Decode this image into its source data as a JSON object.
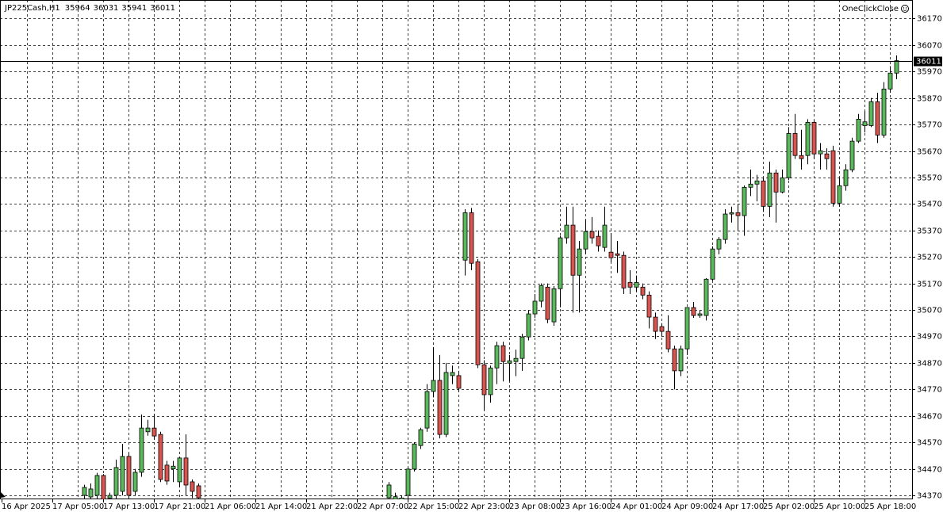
{
  "chart_data": {
    "type": "candlestick",
    "title": "JP225Cash,H1",
    "annotation": "OneClickClose",
    "categories": [
      "16 Apr 2025",
      null,
      null,
      null,
      null,
      null,
      null,
      null,
      "17 Apr 05:00",
      null,
      null,
      null,
      null,
      null,
      null,
      null,
      "17 Apr 13:00",
      null,
      null,
      null,
      null,
      null,
      null,
      null,
      "17 Apr 21:00",
      null,
      null,
      null,
      null,
      null,
      null,
      null,
      "21 Apr 06:00",
      null,
      null,
      null,
      null,
      null,
      null,
      null,
      "21 Apr 14:00",
      null,
      null,
      null,
      null,
      null,
      null,
      null,
      "21 Apr 22:00",
      null,
      null,
      null,
      null,
      null,
      null,
      null,
      "22 Apr 07:00",
      null,
      null,
      null,
      null,
      null,
      null,
      null,
      "22 Apr 15:00",
      null,
      null,
      null,
      null,
      null,
      null,
      null,
      "22 Apr 23:00",
      null,
      null,
      null,
      null,
      null,
      null,
      null,
      "23 Apr 08:00",
      null,
      null,
      null,
      null,
      null,
      null,
      null,
      "23 Apr 16:00",
      null,
      null,
      null,
      null,
      null,
      null,
      null,
      "24 Apr 01:00",
      null,
      null,
      null,
      null,
      null,
      null,
      null,
      "24 Apr 09:00",
      null,
      null,
      null,
      null,
      null,
      null,
      null,
      "24 Apr 17:00",
      null,
      null,
      null,
      null,
      null,
      null,
      null,
      "25 Apr 02:00",
      null,
      null,
      null,
      null,
      null,
      null,
      null,
      "25 Apr 10:00",
      null,
      null,
      null,
      null,
      null,
      null,
      null,
      "25 Apr 18:00",
      null,
      null,
      null,
      null,
      null
    ],
    "open": [
      null,
      null,
      null,
      null,
      null,
      null,
      null,
      null,
      null,
      null,
      null,
      null,
      null,
      34370,
      34364,
      34370,
      34445,
      34360,
      34370,
      34385,
      34517,
      34385,
      34457,
      34610,
      34624,
      34600,
      34484,
      34470,
      34421,
      34511,
      34421,
      34406,
      null,
      null,
      null,
      null,
      null,
      null,
      null,
      null,
      null,
      null,
      null,
      null,
      null,
      null,
      null,
      null,
      null,
      null,
      null,
      null,
      null,
      null,
      null,
      null,
      null,
      null,
      null,
      null,
      null,
      34361,
      34355,
      34340,
      34370,
      34469,
      34558,
      34624,
      34762,
      34804,
      34600,
      34822,
      34822,
      35258,
      35437,
      35252,
      34863,
      34750,
      34851,
      34935,
      34869,
      34875,
      34887,
      34968,
      35055,
      35103,
      35156,
      35025,
      35150,
      35342,
      35390,
      35201,
      35300,
      35366,
      35348,
      35306,
      35288,
      35282,
      35276,
      35174,
      35156,
      35156,
      35126,
      35043,
      35007,
      34989,
      34923,
      34840,
      34923,
      35079,
      35049,
      35049,
      35186,
      35300,
      35336,
      35432,
      35437,
      35426,
      35533,
      35545,
      35557,
      35461,
      35587,
      35515,
      35569,
      35736,
      35653,
      35653,
      35778,
      35659,
      35659,
      35671,
      35473,
      35539,
      35599,
      35707,
      35766,
      35766,
      35856,
      35730,
      35904,
      35964
    ],
    "high": [
      null,
      null,
      null,
      null,
      null,
      null,
      null,
      null,
      null,
      null,
      null,
      null,
      null,
      34410,
      34415,
      34455,
      34450,
      34380,
      34505,
      34564,
      34530,
      34470,
      34675,
      34655,
      34678,
      34610,
      34500,
      34500,
      34515,
      34600,
      34430,
      34415,
      null,
      null,
      null,
      null,
      null,
      null,
      null,
      null,
      null,
      null,
      null,
      null,
      null,
      null,
      null,
      null,
      null,
      null,
      null,
      null,
      null,
      null,
      null,
      null,
      null,
      null,
      null,
      null,
      null,
      34420,
      34380,
      34370,
      34475,
      34570,
      34625,
      34790,
      34930,
      34900,
      34870,
      34860,
      34840,
      35450,
      35455,
      35262,
      34880,
      34860,
      34950,
      34950,
      34900,
      34920,
      34980,
      35070,
      35130,
      35170,
      35170,
      35160,
      35350,
      35460,
      35460,
      35330,
      35410,
      35420,
      35370,
      35460,
      35360,
      35330,
      35290,
      35220,
      35200,
      35170,
      35140,
      35060,
      35020,
      35050,
      34935,
      34935,
      35080,
      35100,
      35070,
      35190,
      35310,
      35345,
      35450,
      35460,
      35470,
      35540,
      35600,
      35580,
      35570,
      35630,
      35600,
      35600,
      35760,
      35810,
      35750,
      35790,
      35785,
      35700,
      35680,
      35690,
      35570,
      35620,
      35720,
      35810,
      35820,
      35870,
      35890,
      35930,
      35990,
      36031
    ],
    "low": [
      null,
      null,
      null,
      null,
      null,
      null,
      null,
      null,
      null,
      null,
      null,
      null,
      null,
      34340,
      34350,
      34355,
      34330,
      34340,
      34355,
      34370,
      34350,
      34370,
      34440,
      34595,
      34580,
      34420,
      34410,
      34420,
      34400,
      34370,
      34360,
      34340,
      null,
      null,
      null,
      null,
      null,
      null,
      null,
      null,
      null,
      null,
      null,
      null,
      null,
      null,
      null,
      null,
      null,
      null,
      null,
      null,
      null,
      null,
      null,
      null,
      null,
      null,
      null,
      null,
      null,
      34340,
      34330,
      34320,
      34350,
      34460,
      34545,
      34610,
      34740,
      34585,
      34590,
      34790,
      34760,
      35200,
      35220,
      34850,
      34690,
      34720,
      34790,
      34800,
      34800,
      34820,
      34840,
      34955,
      35040,
      35080,
      35020,
      35010,
      35080,
      35320,
      35060,
      35060,
      35280,
      35320,
      35290,
      35290,
      35250,
      35210,
      35130,
      35130,
      35140,
      35110,
      35000,
      34960,
      34970,
      34910,
      34770,
      34820,
      34900,
      35040,
      35040,
      35030,
      35180,
      35280,
      35320,
      35400,
      35370,
      35350,
      35500,
      35480,
      35440,
      35420,
      35400,
      35510,
      35560,
      35640,
      35600,
      35620,
      35640,
      35600,
      35600,
      35460,
      35460,
      35520,
      35590,
      35700,
      35740,
      35760,
      35700,
      35720,
      35890,
      35941
    ],
    "close": [
      null,
      null,
      null,
      null,
      null,
      null,
      null,
      null,
      null,
      null,
      null,
      null,
      null,
      34400,
      34394,
      34445,
      34355,
      34370,
      34475,
      34517,
      34370,
      34457,
      34624,
      34624,
      34594,
      34430,
      34424,
      34480,
      34511,
      34409,
      34385,
      34361,
      null,
      null,
      null,
      null,
      null,
      null,
      null,
      null,
      null,
      null,
      null,
      null,
      null,
      null,
      null,
      null,
      null,
      null,
      null,
      null,
      null,
      null,
      null,
      null,
      null,
      null,
      null,
      null,
      null,
      34409,
      34365,
      34360,
      34469,
      34564,
      34618,
      34762,
      34804,
      34600,
      34834,
      34834,
      34774,
      35437,
      35246,
      34863,
      34750,
      34851,
      34935,
      34875,
      34878,
      34887,
      34968,
      35055,
      35103,
      35162,
      35034,
      35150,
      35342,
      35390,
      35201,
      35300,
      35366,
      35342,
      35312,
      35390,
      35267,
      35276,
      35153,
      35156,
      35174,
      35126,
      35043,
      34989,
      34989,
      34923,
      34840,
      34923,
      35079,
      35049,
      35055,
      35186,
      35300,
      35336,
      35432,
      35437,
      35426,
      35533,
      35545,
      35557,
      35461,
      35587,
      35515,
      35569,
      35736,
      35653,
      35641,
      35778,
      35659,
      35671,
      35641,
      35473,
      35539,
      35599,
      35707,
      35790,
      35780,
      35856,
      35730,
      35904,
      35964,
      36011
    ],
    "up_color": "#5cb85c",
    "down_color": "#d9534f",
    "ylim": [
      34355,
      36240
    ],
    "yticks": [
      36170,
      36070,
      35970,
      35870,
      35770,
      35670,
      35570,
      35470,
      35370,
      35270,
      35170,
      35070,
      34970,
      34870,
      34770,
      34670,
      34570,
      34470,
      34370
    ],
    "grid": true
  }
}
